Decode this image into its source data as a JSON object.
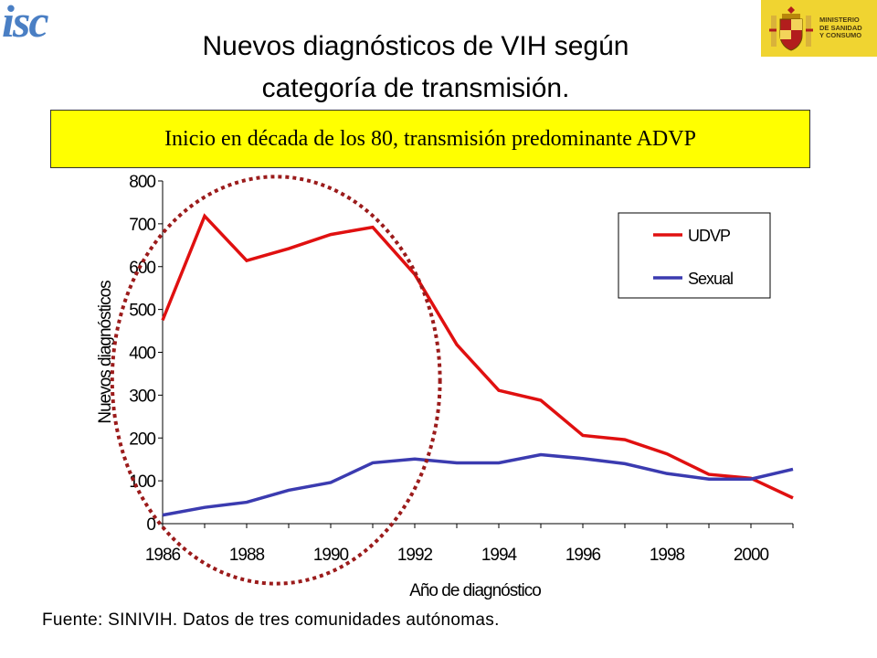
{
  "logo": {
    "text": "isc",
    "icon": "isc-logo-icon",
    "color": "#4a7fc4"
  },
  "ministry": {
    "text": "MINISTERIO\nDE SANIDAD\nY CONSUMO",
    "icon": "coat-of-arms-icon",
    "bg": "#f0d431"
  },
  "slide": {
    "title": "Nuevos diagnósticos de VIH según\ncategoría de transmisión.",
    "banner": "Inicio en década de los 80, transmisión predominante ADVP",
    "banner_bg": "#ffff00",
    "source": "Fuente: SINIVIH. Datos de tres comunidades autónomas."
  },
  "chart_data": {
    "type": "line",
    "title": "",
    "xlabel": "Año de diagnóstico",
    "ylabel": "Nuevos diagnósticos",
    "x": [
      1986,
      1987,
      1988,
      1989,
      1990,
      1991,
      1992,
      1993,
      1994,
      1995,
      1996,
      1997,
      1998,
      1999,
      2000,
      2001
    ],
    "xticks": [
      "1986",
      "1988",
      "1990",
      "1992",
      "1994",
      "1996",
      "1998",
      "2000"
    ],
    "yticks": [
      "0",
      "100",
      "200",
      "300",
      "400",
      "500",
      "600",
      "700",
      "800"
    ],
    "xlim": [
      1986,
      2001
    ],
    "ylim": [
      0,
      800
    ],
    "grid": false,
    "legend_position": "top-right",
    "series": [
      {
        "name": "UDVP",
        "color": "#e01010",
        "values": [
          475,
          718,
          614,
          642,
          675,
          692,
          582,
          418,
          311,
          288,
          206,
          196,
          163,
          115,
          106,
          60
        ]
      },
      {
        "name": "Sexual",
        "color": "#3b3bb0",
        "values": [
          20,
          38,
          50,
          78,
          96,
          142,
          151,
          142,
          142,
          161,
          152,
          140,
          117,
          104,
          104,
          127
        ]
      }
    ],
    "annotation": {
      "shape": "dotted-ellipse",
      "color": "#9b1b1b",
      "x_range": [
        1984.8,
        1992.6
      ],
      "y_range": [
        -140,
        810
      ]
    }
  }
}
